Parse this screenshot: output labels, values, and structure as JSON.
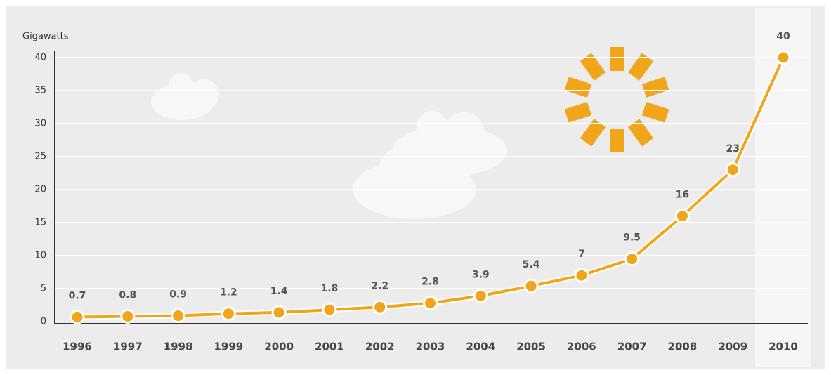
{
  "chart_data": {
    "type": "line",
    "y_label": "Gigawatts",
    "categories": [
      "1996",
      "1997",
      "1998",
      "1999",
      "2000",
      "2001",
      "2002",
      "2003",
      "2004",
      "2005",
      "2006",
      "2007",
      "2008",
      "2009",
      "2010"
    ],
    "values": [
      0.7,
      0.8,
      0.9,
      1.2,
      1.4,
      1.8,
      2.2,
      2.8,
      3.9,
      5.4,
      7,
      9.5,
      16,
      23,
      40
    ],
    "color": "#f0a51a",
    "ylim": [
      0,
      40
    ],
    "yticks": [
      0,
      5,
      10,
      15,
      20,
      25,
      30,
      35,
      40
    ],
    "grid": true
  }
}
